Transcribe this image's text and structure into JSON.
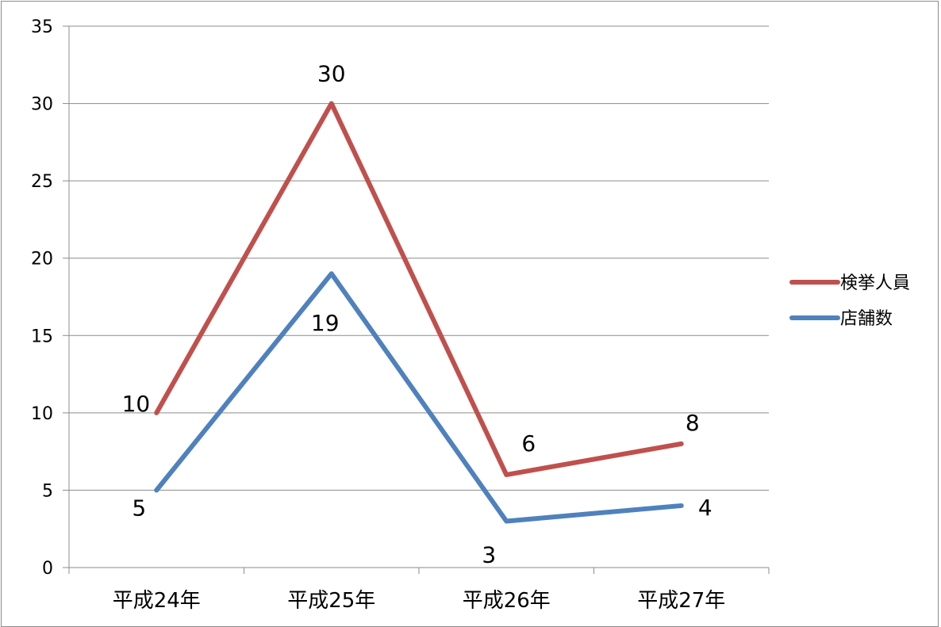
{
  "chart_data": {
    "type": "line",
    "categories": [
      "平成24年",
      "平成25年",
      "平成26年",
      "平成27年"
    ],
    "series": [
      {
        "name": "検挙人員",
        "values": [
          10,
          30,
          6,
          8
        ],
        "color": "#c0504d"
      },
      {
        "name": "店舗数",
        "values": [
          5,
          19,
          3,
          4
        ],
        "color": "#4f81bd"
      }
    ],
    "ylim": [
      0,
      35
    ],
    "yticks": [
      0,
      5,
      10,
      15,
      20,
      25,
      30,
      35
    ],
    "grid": true,
    "legend": "right",
    "title": "",
    "xlabel": "",
    "ylabel": ""
  }
}
